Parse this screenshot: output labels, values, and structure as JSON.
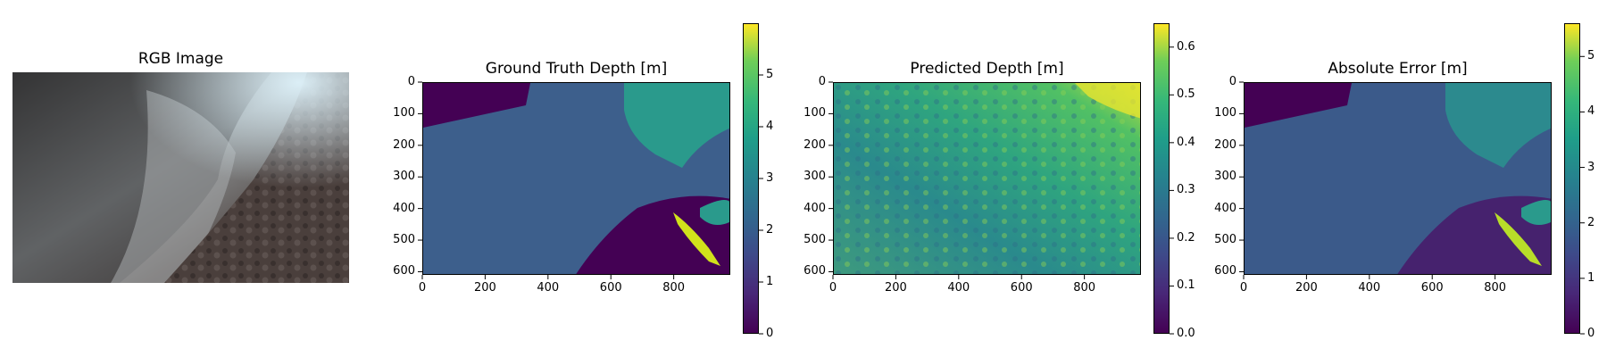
{
  "chart_data": [
    {
      "type": "image",
      "title": "RGB Image",
      "axis": "off",
      "content": "rgb-photograph"
    },
    {
      "type": "heatmap",
      "title": "Ground Truth Depth [m]",
      "colormap": "viridis",
      "xticks": [
        0,
        200,
        400,
        600,
        800
      ],
      "yticks": [
        0,
        100,
        200,
        300,
        400,
        500,
        600
      ],
      "xlim": [
        0,
        980
      ],
      "ylim": [
        610,
        0
      ],
      "colorbar": {
        "ticks": [
          0,
          1,
          2,
          3,
          4,
          5
        ],
        "range": [
          0,
          6
        ]
      }
    },
    {
      "type": "heatmap",
      "title": "Predicted Depth [m]",
      "colormap": "viridis",
      "xticks": [
        0,
        200,
        400,
        600,
        800
      ],
      "yticks": [
        0,
        100,
        200,
        300,
        400,
        500,
        600
      ],
      "xlim": [
        0,
        980
      ],
      "ylim": [
        610,
        0
      ],
      "colorbar": {
        "ticks": [
          0.0,
          0.1,
          0.2,
          0.3,
          0.4,
          0.5,
          0.6
        ],
        "tick_labels": [
          "0.0",
          "0.1",
          "0.2",
          "0.3",
          "0.4",
          "0.5",
          "0.6"
        ],
        "range": [
          0,
          0.65
        ]
      }
    },
    {
      "type": "heatmap",
      "title": "Absolute Error [m]",
      "colormap": "viridis",
      "xticks": [
        0,
        200,
        400,
        600,
        800
      ],
      "yticks": [
        0,
        100,
        200,
        300,
        400,
        500,
        600
      ],
      "xlim": [
        0,
        980
      ],
      "ylim": [
        610,
        0
      ],
      "colorbar": {
        "ticks": [
          0,
          1,
          2,
          3,
          4,
          5
        ],
        "range": [
          0,
          5.6
        ]
      }
    }
  ]
}
